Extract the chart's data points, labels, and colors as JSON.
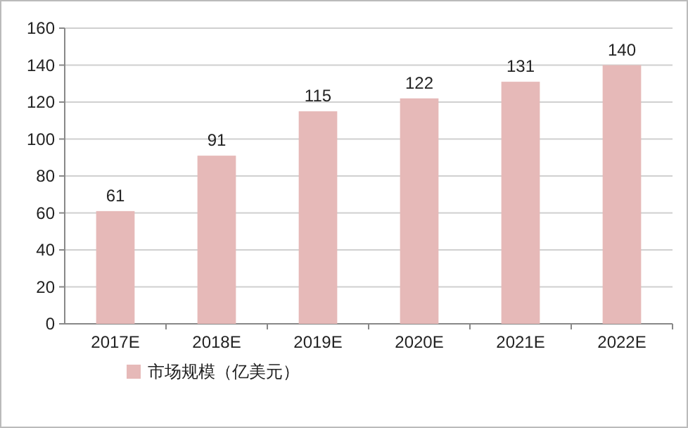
{
  "chart_data": {
    "type": "bar",
    "categories": [
      "2017E",
      "2018E",
      "2019E",
      "2020E",
      "2021E",
      "2022E"
    ],
    "series": [
      {
        "name": "市场规模（亿美元）",
        "color": "#e6b9b8",
        "values": [
          61,
          91,
          115,
          122,
          131,
          140
        ]
      }
    ],
    "ylim": [
      0,
      160
    ],
    "yticks": [
      0,
      20,
      40,
      60,
      80,
      100,
      120,
      140,
      160
    ],
    "grid": "y",
    "legend": "bottom",
    "data_labels": true
  }
}
